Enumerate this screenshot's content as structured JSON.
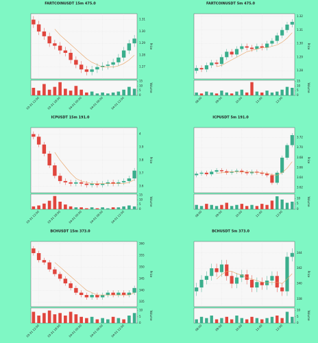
{
  "chart_data": [
    {
      "type": "candlestick",
      "title": "FARTCOINUSDT 15m 475.0",
      "ylabel": "Price",
      "volume_label": "Volume",
      "categories": [
        null,
        "03-31 12:00",
        null,
        null,
        null,
        "03-31 18:00",
        null,
        null,
        null,
        "04-01 00:00",
        null,
        null,
        null,
        "04-01 06:00",
        null,
        null,
        null,
        "04-01 12:00",
        null,
        null
      ],
      "open": [
        1.31,
        1.306,
        1.3,
        1.296,
        1.29,
        1.288,
        1.284,
        1.282,
        1.276,
        1.272,
        1.268,
        1.266,
        1.268,
        1.27,
        1.271,
        1.272,
        1.274,
        1.278,
        1.284,
        1.29
      ],
      "high": [
        1.313,
        1.309,
        1.303,
        1.299,
        1.293,
        1.291,
        1.287,
        1.285,
        1.279,
        1.275,
        1.271,
        1.271,
        1.273,
        1.274,
        1.275,
        1.277,
        1.281,
        1.287,
        1.293,
        1.297
      ],
      "low": [
        1.303,
        1.297,
        1.293,
        1.287,
        1.285,
        1.281,
        1.279,
        1.273,
        1.269,
        1.265,
        1.263,
        1.263,
        1.265,
        1.267,
        1.268,
        1.269,
        1.271,
        1.275,
        1.281,
        1.287
      ],
      "close": [
        1.306,
        1.3,
        1.296,
        1.29,
        1.288,
        1.284,
        1.282,
        1.276,
        1.272,
        1.268,
        1.266,
        1.268,
        1.27,
        1.271,
        1.272,
        1.274,
        1.278,
        1.284,
        1.29,
        1.294
      ],
      "ma": [
        null,
        null,
        null,
        null,
        1.302,
        1.297,
        1.293,
        1.289,
        1.285,
        1.281,
        1.277,
        1.274,
        1.272,
        1.27,
        1.27,
        1.27,
        1.271,
        1.273,
        1.276,
        1.28
      ],
      "volume": [
        8,
        5,
        12,
        6,
        9,
        14,
        7,
        5,
        10,
        6,
        3,
        4,
        2,
        3,
        2,
        3,
        4,
        6,
        9,
        7
      ],
      "ylim": [
        1.26,
        1.315
      ],
      "yticks": [
        1.27,
        1.28,
        1.29,
        {
          "value": 1.3,
          "label": "1.30"
        },
        1.31
      ],
      "volume_lim": [
        0,
        16
      ],
      "volume_ticks": [
        0,
        5,
        10,
        15
      ],
      "up_color": "#3aae8c",
      "down_color": "#e0453d",
      "ma_color": "#e8a060",
      "grid": true
    },
    {
      "type": "candlestick",
      "title": "FARTCOINUSDT 5m 475.0",
      "ylabel": "Price",
      "volume_label": "Volume",
      "categories": [
        null,
        "08:00",
        null,
        null,
        null,
        "09:00",
        null,
        null,
        null,
        "10:00",
        null,
        null,
        null,
        "11:00",
        null,
        null,
        null,
        "12:00",
        null,
        null
      ],
      "open": [
        1.28,
        1.282,
        1.281,
        1.284,
        1.286,
        1.285,
        1.29,
        1.294,
        1.292,
        1.296,
        1.298,
        1.297,
        1.296,
        1.298,
        1.297,
        1.3,
        1.302,
        1.306,
        1.31,
        1.314
      ],
      "high": [
        1.284,
        1.284,
        1.286,
        1.288,
        1.288,
        1.292,
        1.296,
        1.296,
        1.298,
        1.3,
        1.3,
        1.299,
        1.3,
        1.3,
        1.302,
        1.304,
        1.308,
        1.312,
        1.316,
        1.318
      ],
      "low": [
        1.278,
        1.279,
        1.279,
        1.282,
        1.283,
        1.283,
        1.288,
        1.29,
        1.29,
        1.294,
        1.295,
        1.294,
        1.294,
        1.295,
        1.295,
        1.298,
        1.3,
        1.304,
        1.308,
        1.312
      ],
      "close": [
        1.282,
        1.281,
        1.284,
        1.286,
        1.285,
        1.29,
        1.294,
        1.292,
        1.296,
        1.298,
        1.297,
        1.296,
        1.298,
        1.297,
        1.3,
        1.302,
        1.306,
        1.31,
        1.314,
        1.316
      ],
      "ma": [
        null,
        null,
        null,
        null,
        1.283,
        1.284,
        1.286,
        1.288,
        1.29,
        1.292,
        1.294,
        1.295,
        1.296,
        1.297,
        1.297,
        1.298,
        1.299,
        1.301,
        1.304,
        1.308
      ],
      "volume": [
        3,
        2,
        4,
        3,
        2,
        5,
        3,
        2,
        4,
        6,
        3,
        14,
        4,
        3,
        5,
        3,
        4,
        6,
        9,
        8
      ],
      "ylim": [
        1.274,
        1.322
      ],
      "yticks": [
        1.28,
        1.29,
        {
          "value": 1.3,
          "label": "1.30"
        },
        1.31,
        1.32
      ],
      "volume_lim": [
        0,
        16
      ],
      "volume_ticks": [
        0,
        5,
        10,
        15
      ],
      "up_color": "#3aae8c",
      "down_color": "#e0453d",
      "ma_color": "#e8a060",
      "grid": true
    },
    {
      "type": "candlestick",
      "title": "ICPUSDT 15m 191.0",
      "ylabel": "Price",
      "volume_label": "Volume",
      "categories": [
        null,
        "03-31 12:00",
        null,
        null,
        null,
        "03-31 18:00",
        null,
        null,
        null,
        "04-01 00:00",
        null,
        null,
        null,
        "04-01 06:00",
        null,
        null,
        null,
        "04-01 12:00",
        null,
        null
      ],
      "open": [
        4.0,
        3.98,
        3.92,
        3.85,
        3.76,
        3.68,
        3.64,
        3.63,
        3.62,
        3.63,
        3.62,
        3.61,
        3.62,
        3.61,
        3.62,
        3.63,
        3.62,
        3.63,
        3.64,
        3.66
      ],
      "high": [
        4.02,
        4.0,
        3.94,
        3.87,
        3.78,
        3.7,
        3.66,
        3.65,
        3.65,
        3.65,
        3.64,
        3.64,
        3.64,
        3.64,
        3.65,
        3.65,
        3.65,
        3.66,
        3.68,
        3.74
      ],
      "low": [
        3.96,
        3.9,
        3.83,
        3.74,
        3.66,
        3.62,
        3.61,
        3.6,
        3.6,
        3.6,
        3.59,
        3.59,
        3.59,
        3.59,
        3.6,
        3.6,
        3.6,
        3.61,
        3.62,
        3.64
      ],
      "close": [
        3.98,
        3.92,
        3.85,
        3.76,
        3.68,
        3.64,
        3.63,
        3.62,
        3.63,
        3.62,
        3.61,
        3.62,
        3.61,
        3.62,
        3.63,
        3.62,
        3.63,
        3.64,
        3.66,
        3.72
      ],
      "ma": [
        null,
        null,
        null,
        null,
        3.86,
        3.8,
        3.75,
        3.7,
        3.66,
        3.64,
        3.63,
        3.62,
        3.62,
        3.62,
        3.62,
        3.62,
        3.62,
        3.62,
        3.63,
        3.65
      ],
      "volume": [
        3,
        4,
        6,
        9,
        14,
        8,
        5,
        3,
        2,
        2,
        1,
        2,
        1,
        2,
        1,
        2,
        2,
        3,
        4,
        3
      ],
      "ylim": [
        3.55,
        4.05
      ],
      "yticks": [
        3.6,
        3.7,
        3.8,
        3.9,
        4.0
      ],
      "volume_lim": [
        0,
        16
      ],
      "volume_ticks": [
        0,
        5,
        10,
        15
      ],
      "up_color": "#3aae8c",
      "down_color": "#e0453d",
      "ma_color": "#e8a060",
      "grid": true
    },
    {
      "type": "candlestick",
      "title": "ICPUSDT 5m 191.0",
      "ylabel": "Price",
      "volume_label": "Volume",
      "categories": [
        null,
        "08:00",
        null,
        null,
        null,
        "09:00",
        null,
        null,
        null,
        "10:00",
        null,
        null,
        null,
        "11:00",
        null,
        null,
        null,
        "12:00",
        null,
        null
      ],
      "open": [
        3.645,
        3.648,
        3.65,
        3.647,
        3.652,
        3.655,
        3.653,
        3.65,
        3.652,
        3.654,
        3.651,
        3.649,
        3.652,
        3.65,
        3.648,
        3.645,
        3.63,
        3.65,
        3.68,
        3.705
      ],
      "high": [
        3.652,
        3.654,
        3.654,
        3.656,
        3.659,
        3.659,
        3.657,
        3.656,
        3.658,
        3.658,
        3.655,
        3.656,
        3.656,
        3.654,
        3.652,
        3.649,
        3.654,
        3.684,
        3.709,
        3.729
      ],
      "low": [
        3.641,
        3.644,
        3.643,
        3.643,
        3.648,
        3.649,
        3.646,
        3.646,
        3.648,
        3.647,
        3.645,
        3.645,
        3.646,
        3.644,
        3.641,
        3.626,
        3.626,
        3.646,
        3.676,
        3.701
      ],
      "close": [
        3.648,
        3.65,
        3.647,
        3.652,
        3.655,
        3.653,
        3.65,
        3.652,
        3.654,
        3.651,
        3.649,
        3.652,
        3.65,
        3.648,
        3.645,
        3.63,
        3.65,
        3.68,
        3.705,
        3.725
      ],
      "ma": [
        null,
        null,
        null,
        null,
        3.649,
        3.65,
        3.651,
        3.652,
        3.652,
        3.652,
        3.652,
        3.651,
        3.651,
        3.65,
        3.649,
        3.646,
        3.645,
        3.65,
        3.659,
        3.672
      ],
      "volume": [
        4,
        3,
        5,
        4,
        3,
        4,
        6,
        3,
        4,
        5,
        3,
        4,
        3,
        5,
        4,
        8,
        12,
        9,
        6,
        7
      ],
      "ylim": [
        3.61,
        3.74
      ],
      "yticks": [
        3.62,
        3.64,
        3.66,
        3.68,
        {
          "value": 3.7,
          "label": "3.70"
        },
        3.72
      ],
      "volume_lim": [
        0,
        14
      ],
      "volume_ticks": [
        0,
        5,
        10
      ],
      "up_color": "#3aae8c",
      "down_color": "#e0453d",
      "ma_color": "#e8a060",
      "grid": true
    },
    {
      "type": "candlestick",
      "title": "BCHUSDT 15m 373.0",
      "ylabel": "Price",
      "volume_label": "Volume",
      "categories": [
        null,
        "03-31 12:00",
        null,
        null,
        null,
        "03-31 18:00",
        null,
        null,
        null,
        "04-01 00:00",
        null,
        null,
        null,
        "04-01 06:00",
        null,
        null,
        null,
        "04-01 12:00",
        null,
        null
      ],
      "open": [
        358,
        356,
        353,
        352,
        349,
        347,
        345,
        343,
        341,
        339,
        338,
        337,
        338,
        337,
        338,
        339,
        338,
        339,
        338,
        339
      ],
      "high": [
        359,
        357,
        354,
        353,
        350,
        348,
        346,
        344,
        342,
        340,
        339,
        339,
        339,
        339,
        340,
        340,
        340,
        340,
        340,
        342
      ],
      "low": [
        355,
        352,
        351,
        348,
        346,
        344,
        342,
        340,
        338,
        337,
        336,
        336,
        336,
        336,
        337,
        337,
        337,
        337,
        337,
        338
      ],
      "close": [
        356,
        353,
        352,
        349,
        347,
        345,
        343,
        341,
        339,
        338,
        337,
        338,
        337,
        338,
        339,
        338,
        339,
        338,
        339,
        341
      ],
      "ma": [
        null,
        null,
        null,
        null,
        352,
        350,
        348,
        346,
        344,
        342,
        340,
        339,
        338,
        338,
        338,
        338,
        338,
        338,
        338,
        339
      ],
      "volume": [
        9,
        6,
        8,
        10,
        7,
        8,
        6,
        9,
        7,
        5,
        4,
        5,
        3,
        4,
        3,
        5,
        4,
        3,
        6,
        8
      ],
      "ylim": [
        333,
        361
      ],
      "yticks": [
        335,
        340,
        345,
        350,
        355,
        360
      ],
      "volume_lim": [
        0,
        12
      ],
      "volume_ticks": [
        0,
        5,
        10
      ],
      "up_color": "#3aae8c",
      "down_color": "#e0453d",
      "ma_color": "#e8a060",
      "grid": true
    },
    {
      "type": "candlestick",
      "title": "BCHUSDT 5m 373.0",
      "ylabel": "Price",
      "volume_label": "Volume",
      "categories": [
        null,
        "08:00",
        null,
        null,
        null,
        "09:00",
        null,
        null,
        null,
        "10:00",
        null,
        null,
        null,
        "11:00",
        null,
        null,
        null,
        "12:00",
        null,
        null
      ],
      "open": [
        339.0,
        339.5,
        340.5,
        341.0,
        342.0,
        341.5,
        342.5,
        341.0,
        340.0,
        340.8,
        341.2,
        340.5,
        339.5,
        340.2,
        339.8,
        340.4,
        341.0,
        339.5,
        339.0,
        343.5
      ],
      "high": [
        340.1,
        341.1,
        341.6,
        342.6,
        342.6,
        343.1,
        343.1,
        341.6,
        341.4,
        341.8,
        341.8,
        341.1,
        340.8,
        340.8,
        341.0,
        341.6,
        341.6,
        340.1,
        344.1,
        344.6
      ],
      "low": [
        338.4,
        338.9,
        339.9,
        340.4,
        340.9,
        340.9,
        340.4,
        339.4,
        339.4,
        340.2,
        339.9,
        338.9,
        338.9,
        339.2,
        339.2,
        339.8,
        338.9,
        338.4,
        338.4,
        342.9
      ],
      "close": [
        339.5,
        340.5,
        341.0,
        342.0,
        341.5,
        342.5,
        341.0,
        340.0,
        340.8,
        341.2,
        340.5,
        339.5,
        340.2,
        339.8,
        340.4,
        341.0,
        339.5,
        339.0,
        343.5,
        344.0
      ],
      "ma": [
        null,
        null,
        null,
        null,
        340.6,
        341.2,
        341.6,
        341.6,
        341.3,
        341.1,
        340.8,
        340.6,
        340.4,
        340.2,
        340.1,
        340.2,
        340.2,
        340.0,
        340.6,
        341.3
      ],
      "volume": [
        3,
        5,
        4,
        6,
        3,
        4,
        5,
        3,
        6,
        4,
        3,
        5,
        4,
        3,
        4,
        5,
        6,
        4,
        9,
        5
      ],
      "ylim": [
        337,
        345.5
      ],
      "yticks": [
        338,
        340,
        342,
        344
      ],
      "volume_lim": [
        0,
        12
      ],
      "volume_ticks": [
        0,
        5,
        10
      ],
      "up_color": "#3aae8c",
      "down_color": "#e0453d",
      "ma_color": "#e8a060",
      "grid": true
    }
  ]
}
